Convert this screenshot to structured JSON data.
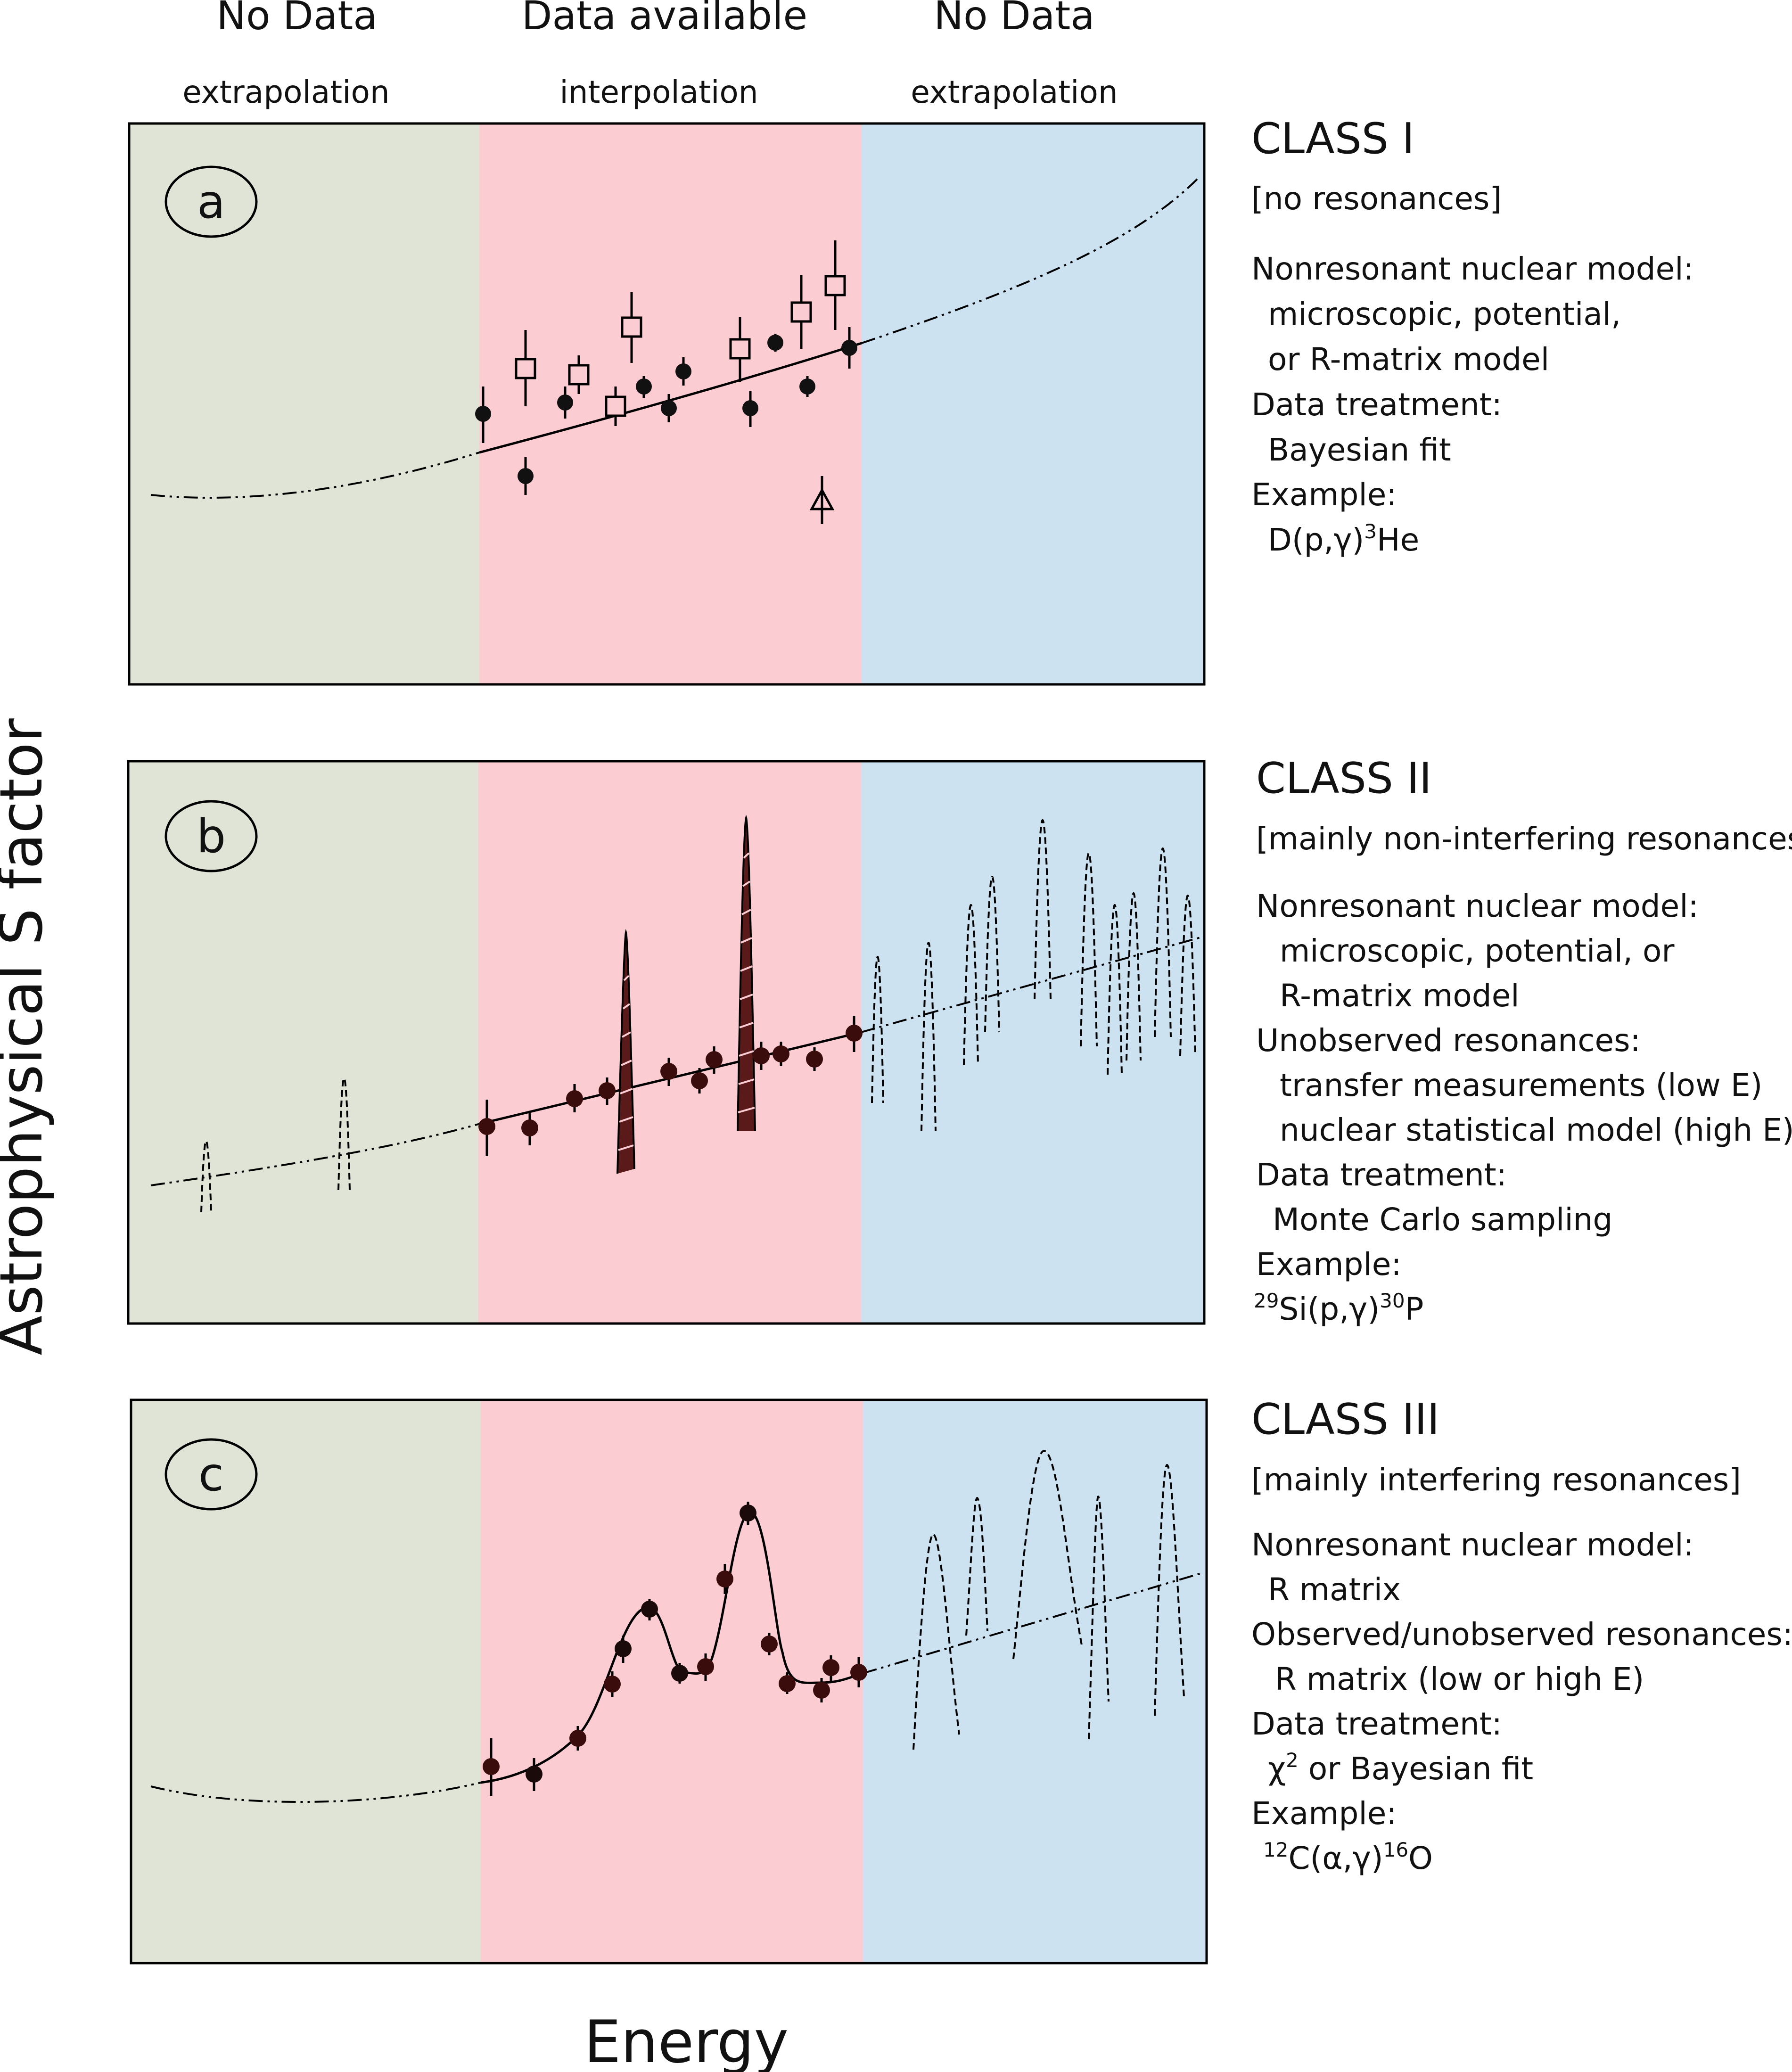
{
  "top_headers": [
    {
      "title": "No Data",
      "subtitle": "extrapolation"
    },
    {
      "title": "Data available",
      "subtitle": "interpolation"
    },
    {
      "title": "No Data",
      "subtitle": "extrapolation"
    }
  ],
  "axis": {
    "y_label": "Astrophysical S factor",
    "x_label": "Energy"
  },
  "colors": {
    "extrapolation_low": "#dfe4d6",
    "interpolation": "#fbccd1",
    "extrapolation_high": "#cce2f0",
    "data_point": "#1a0a0a",
    "data_point_c": "#3a0c0c"
  },
  "panels": [
    {
      "letter": "a",
      "class_title": "CLASS I",
      "tagline": "[no resonances]",
      "lines": [
        "Nonresonant nuclear model:",
        "microscopic, potential,",
        "or R-matrix model",
        "Data treatment:",
        "Bayesian fit",
        "Example:"
      ],
      "example": {
        "pre": "",
        "pre_sup": "",
        "main1": "D(p,γ)",
        "mid_sup": "3",
        "main2": "He"
      }
    },
    {
      "letter": "b",
      "class_title": "CLASS II",
      "tagline": "[mainly non-interfering resonances]",
      "lines": [
        "Nonresonant nuclear model:",
        "microscopic, potential, or",
        "R-matrix model",
        "Unobserved resonances:",
        "transfer measurements (low E)",
        "nuclear statistical model (high E)",
        "Data treatment:",
        "Monte Carlo sampling",
        "Example:"
      ],
      "example": {
        "pre": "",
        "pre_sup": "29",
        "main1": "Si(p,γ)",
        "mid_sup": "30",
        "main2": "P"
      }
    },
    {
      "letter": "c",
      "class_title": "CLASS III",
      "tagline": "[mainly interfering resonances]",
      "lines": [
        "Nonresonant nuclear model:",
        "R matrix",
        "Observed/unobserved resonances:",
        "R matrix (low or high E)",
        "Data treatment:",
        "χ",
        "Example:"
      ],
      "chi_sup": "2",
      "chi_rest": " or Bayesian fit",
      "example": {
        "pre": "",
        "pre_sup": "12",
        "main1": "C(α,γ)",
        "mid_sup": "16",
        "main2": "O"
      }
    }
  ]
}
